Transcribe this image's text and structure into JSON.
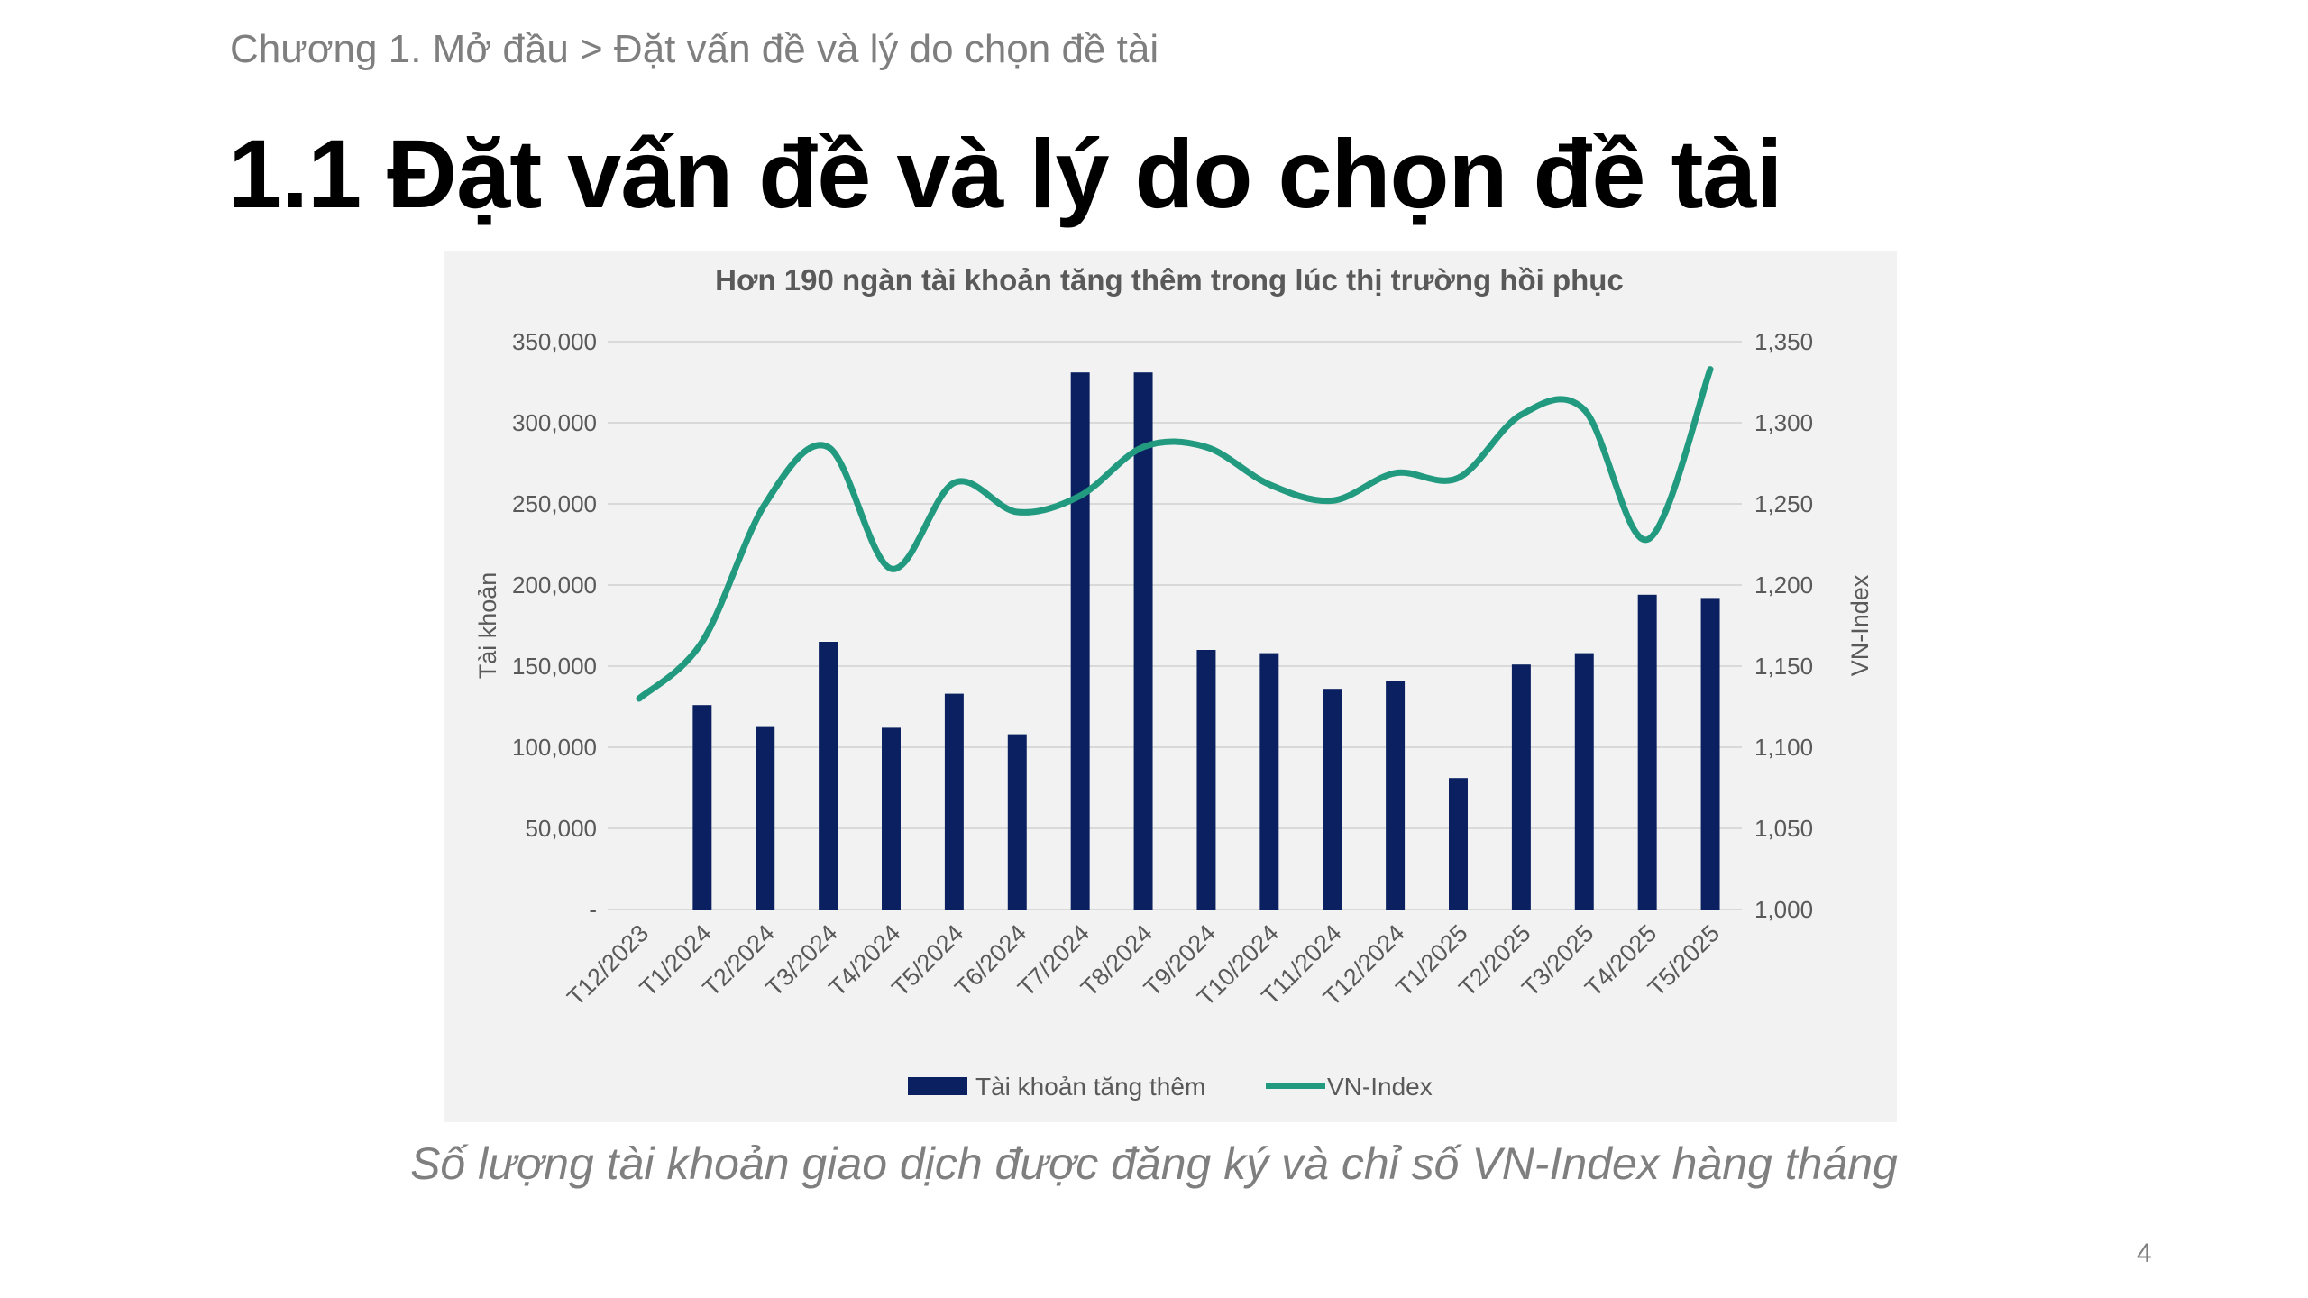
{
  "slide": {
    "breadcrumb": "Chương 1. Mở đầu > Đặt vấn đề và lý do chọn đề tài",
    "title": "1.1 Đặt vấn đề và lý do chọn đề tài",
    "caption": "Số lượng tài khoản giao dịch được đăng ký và chỉ số VN-Index hàng tháng",
    "page_number": "4"
  },
  "colors": {
    "bar": "#0b2060",
    "line": "#229a7f",
    "grid": "#d9d9d9",
    "text": "#595959"
  },
  "chart_data": {
    "type": "bar",
    "title": "Hơn 190 ngàn tài khoản tăng thêm trong lúc thị trường hồi phục",
    "ylabel": "Tài khoản",
    "y2label": "VN-Index",
    "categories": [
      "T12/2023",
      "T1/2024",
      "T2/2024",
      "T3/2024",
      "T4/2024",
      "T5/2024",
      "T6/2024",
      "T7/2024",
      "T8/2024",
      "T9/2024",
      "T10/2024",
      "T11/2024",
      "T12/2024",
      "T1/2025",
      "T2/2025",
      "T3/2025",
      "T4/2025",
      "T5/2025"
    ],
    "ylim": [
      0,
      350000
    ],
    "y_ticks": [
      "-",
      "50,000",
      "100,000",
      "150,000",
      "200,000",
      "250,000",
      "300,000",
      "350,000"
    ],
    "y2lim": [
      1000,
      1350
    ],
    "y2_ticks": [
      "1,000",
      "1,050",
      "1,100",
      "1,150",
      "1,200",
      "1,250",
      "1,300",
      "1,350"
    ],
    "legend_position": "bottom",
    "series": [
      {
        "name": "Tài khoản tăng thêm",
        "type": "bar",
        "axis": "left",
        "values": [
          0,
          126000,
          113000,
          165000,
          112000,
          133000,
          108000,
          331000,
          331000,
          160000,
          158000,
          136000,
          141000,
          81000,
          151000,
          158000,
          194000,
          192000
        ]
      },
      {
        "name": "VN-Index",
        "type": "line",
        "axis": "right",
        "values": [
          1130,
          1165,
          1250,
          1285,
          1210,
          1263,
          1245,
          1255,
          1285,
          1285,
          1262,
          1252,
          1269,
          1266,
          1305,
          1308,
          1228,
          1333
        ]
      }
    ]
  }
}
